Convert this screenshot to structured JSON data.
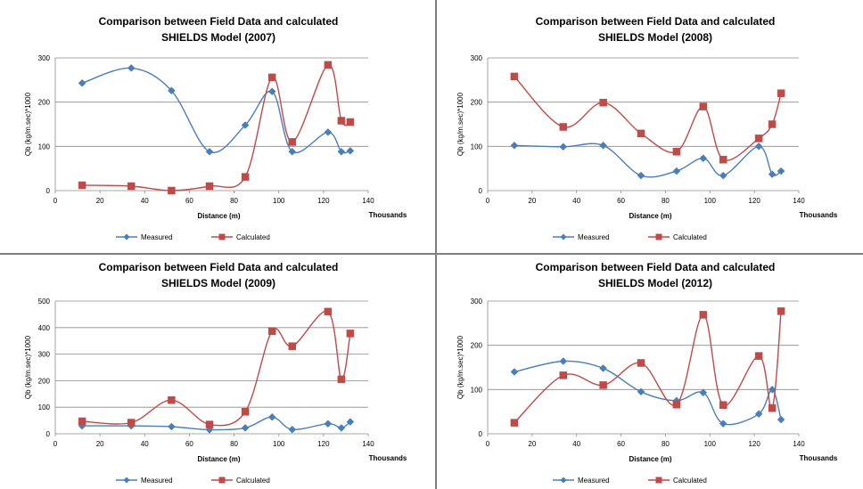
{
  "chart_data": [
    {
      "type": "line",
      "title_line1": "Comparison between Field Data and calculated",
      "title_line2": "SHIELDS Model (2007)",
      "xlabel": "Distance (m)",
      "x_units": "Thousands",
      "ylabel": "Qb (kg/m.sec)*1000",
      "xlim": [
        0,
        140
      ],
      "ylim": [
        0,
        300
      ],
      "xticks": [
        0,
        20,
        40,
        60,
        80,
        100,
        120,
        140
      ],
      "yticks": [
        0,
        100,
        200,
        300
      ],
      "grid": "horizontal",
      "legend_position": "bottom",
      "x": [
        12,
        34,
        52,
        69,
        85,
        97,
        106,
        122,
        128,
        132
      ],
      "series": [
        {
          "name": "Measured",
          "color": "#4a7ebb",
          "marker": "diamond",
          "values": [
            243,
            277,
            226,
            88,
            148,
            224,
            88,
            132,
            88,
            90
          ]
        },
        {
          "name": "Calculated",
          "color": "#be4b48",
          "marker": "square",
          "values": [
            12,
            10,
            0,
            10,
            31,
            256,
            110,
            284,
            158,
            155
          ]
        }
      ]
    },
    {
      "type": "line",
      "title_line1": "Comparison between Field Data and calculated",
      "title_line2": "SHIELDS Model (2008)",
      "xlabel": "Distance (m)",
      "x_units": "Thousands",
      "ylabel": "Qb (kg/m.sec)*1000",
      "xlim": [
        0,
        140
      ],
      "ylim": [
        0,
        300
      ],
      "xticks": [
        0,
        20,
        40,
        60,
        80,
        100,
        120,
        140
      ],
      "yticks": [
        0,
        100,
        200,
        300
      ],
      "grid": "horizontal",
      "legend_position": "bottom",
      "x": [
        12,
        34,
        52,
        69,
        85,
        97,
        106,
        122,
        128,
        132
      ],
      "series": [
        {
          "name": "Measured",
          "color": "#4a7ebb",
          "marker": "diamond",
          "values": [
            102,
            99,
            102,
            34,
            44,
            73,
            34,
            100,
            37,
            44
          ]
        },
        {
          "name": "Calculated",
          "color": "#be4b48",
          "marker": "square",
          "values": [
            258,
            144,
            199,
            129,
            88,
            190,
            70,
            118,
            150,
            220
          ]
        }
      ]
    },
    {
      "type": "line",
      "title_line1": "Comparison between Field Data and calculated",
      "title_line2": "SHIELDS Model (2009)",
      "xlabel": "Distance (m)",
      "x_units": "Thousands",
      "ylabel": "Qb (kg/m.sec)*1000",
      "xlim": [
        0,
        140
      ],
      "ylim": [
        0,
        500
      ],
      "xticks": [
        0,
        20,
        40,
        60,
        80,
        100,
        120,
        140
      ],
      "yticks": [
        0,
        100,
        200,
        300,
        400,
        500
      ],
      "grid": "horizontal",
      "legend_position": "bottom",
      "x": [
        12,
        34,
        52,
        69,
        85,
        97,
        106,
        122,
        128,
        132
      ],
      "series": [
        {
          "name": "Measured",
          "color": "#4a7ebb",
          "marker": "diamond",
          "values": [
            30,
            30,
            27,
            15,
            22,
            63,
            16,
            38,
            22,
            45
          ]
        },
        {
          "name": "Calculated",
          "color": "#be4b48",
          "marker": "square",
          "values": [
            47,
            42,
            127,
            35,
            83,
            387,
            330,
            460,
            205,
            378
          ]
        }
      ]
    },
    {
      "type": "line",
      "title_line1": "Comparison between Field Data and calculated",
      "title_line2": "SHIELDS Model (2012)",
      "xlabel": "Distance (m)",
      "x_units": "Thousands",
      "ylabel": "Qb (kg/m.sec)*1000",
      "xlim": [
        0,
        140
      ],
      "ylim": [
        0,
        300
      ],
      "xticks": [
        0,
        20,
        40,
        60,
        80,
        100,
        120,
        140
      ],
      "yticks": [
        0,
        100,
        200,
        300
      ],
      "grid": "horizontal",
      "legend_position": "bottom",
      "x": [
        12,
        34,
        52,
        69,
        85,
        97,
        106,
        122,
        128,
        132
      ],
      "series": [
        {
          "name": "Measured",
          "color": "#4a7ebb",
          "marker": "diamond",
          "values": [
            140,
            164,
            148,
            95,
            75,
            93,
            23,
            45,
            100,
            32
          ]
        },
        {
          "name": "Calculated",
          "color": "#be4b48",
          "marker": "square",
          "values": [
            25,
            132,
            110,
            160,
            66,
            269,
            65,
            176,
            58,
            277
          ]
        }
      ]
    }
  ]
}
